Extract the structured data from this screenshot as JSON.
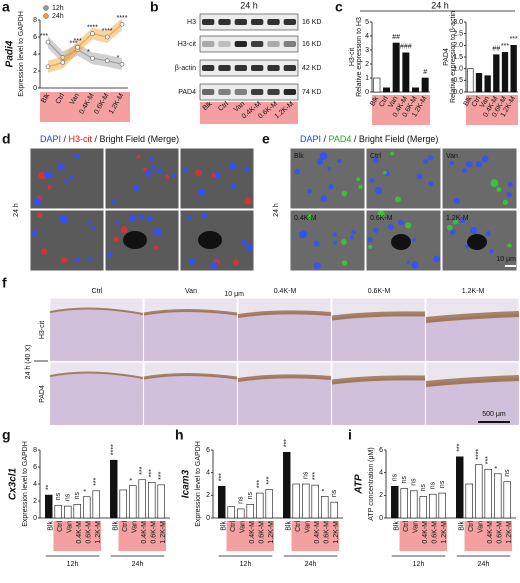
{
  "panels": {
    "letters": [
      "a",
      "b",
      "c",
      "d",
      "e",
      "f",
      "g",
      "h",
      "i"
    ],
    "a": {
      "type": "line",
      "gene": "Padi4",
      "ylabel": "Expression level to GAPDH",
      "categories": [
        "Blk",
        "Ctrl",
        "Van",
        "0.4K-M",
        "0.6K-M",
        "1.2K-M"
      ],
      "ylim": [
        0,
        8
      ],
      "yticks": [
        0,
        2,
        4,
        6,
        8
      ],
      "series": [
        {
          "name": "12h",
          "color": "#9a9a9a",
          "values": [
            5.4,
            3.6,
            4.5,
            3.5,
            3.2,
            2.8
          ],
          "sig": [
            "***",
            null,
            "***",
            "*",
            null,
            "*"
          ]
        },
        {
          "name": "24h",
          "color": "#f0a030",
          "values": [
            2.5,
            3.0,
            4.8,
            6.4,
            6.0,
            7.5
          ],
          "sig": [
            null,
            null,
            "***",
            "****",
            "****",
            "****"
          ]
        }
      ]
    },
    "b": {
      "title": "24 h",
      "bands": [
        {
          "name": "H3",
          "size": "16 KD"
        },
        {
          "name": "H3-cit",
          "size": "16 KD"
        },
        {
          "name": "β-actin",
          "size": "42 KD"
        },
        {
          "name": "PAD4",
          "size": "74 KD"
        }
      ],
      "lanes": [
        "Blk",
        "Ctrl",
        "Van",
        "0.4K-M",
        "0.6K-M",
        "1.2K-M"
      ]
    },
    "c": {
      "title": "24 h",
      "charts": [
        {
          "top": "H3-cit",
          "ylabel": "Relative expression to H3",
          "ylim": [
            0,
            5
          ],
          "yticks": [
            0,
            1,
            2,
            3,
            4,
            5
          ],
          "categories": [
            "Blk",
            "Ctrl",
            "Van",
            "0.4K-M",
            "0.6K-M",
            "1.2K-M"
          ],
          "values": [
            1.0,
            0.3,
            3.5,
            2.8,
            0.3,
            1.0
          ],
          "sig": [
            null,
            null,
            "##",
            "###",
            null,
            "#"
          ]
        },
        {
          "top": "PAD4",
          "ylabel": "Relative expression to β-actin",
          "ylim": [
            0,
            3
          ],
          "yticks": [
            {
              "value": 0,
              "label": "0.0"
            },
            0.5,
            {
              "value": 1,
              "label": "1.0"
            },
            1.5,
            {
              "value": 2,
              "label": "2.0"
            },
            2.5,
            {
              "value": 3,
              "label": "3.0"
            }
          ],
          "categories": [
            "Blk",
            "Ctrl",
            "Van",
            "0.4K-M",
            "0.6K-M",
            "1.2K-M"
          ],
          "values": [
            1.0,
            0.8,
            0.7,
            1.6,
            1.7,
            2.0
          ],
          "sig": [
            null,
            null,
            null,
            "##",
            "***",
            "***"
          ]
        }
      ]
    },
    "d": {
      "title_parts": [
        "DAPI",
        " / ",
        "H3-cit",
        " / Bright Field (Merge)"
      ],
      "row_label": "24 h",
      "scale": "10 μm"
    },
    "e": {
      "title_parts": [
        "DAPI",
        " / ",
        "PAD4",
        " / Bright Field (Merge)"
      ],
      "row_label": "24 h",
      "scale": "10 μm",
      "labels": [
        "Blk",
        "Ctrl",
        "Van",
        "0.4K-M",
        "0.6K-M",
        "1.2K-M"
      ]
    },
    "f": {
      "columns": [
        "Ctrl",
        "Van",
        "0.4K-M",
        "0.6K-M",
        "1.2K-M"
      ],
      "rows": [
        "H3-cit",
        "PAD4"
      ],
      "row_label": "24 h (40 X)",
      "scale": "500 μm"
    },
    "bars": [
      {
        "gene": "Cx3cl1",
        "ylabel": "Expression level to GAPDH",
        "ylim": [
          0,
          8
        ],
        "yticks": [
          0,
          2,
          4,
          6,
          8
        ],
        "categories": [
          "Blk",
          "Ctrl",
          "Van",
          "0.4K-M",
          "0.6K-M",
          "1.2K-M"
        ],
        "groups": [
          {
            "name": "12h",
            "values": [
              2.7,
              1.5,
              1.4,
              1.6,
              2.5,
              3.2
            ],
            "sig": [
              "**",
              "ns",
              "ns",
              "ns",
              "*",
              "***"
            ]
          },
          {
            "name": "24h",
            "values": [
              6.8,
              3.3,
              3.8,
              4.5,
              4.2,
              3.9
            ],
            "sig": [
              "****",
              null,
              "*",
              "***",
              "***",
              "***"
            ]
          }
        ]
      },
      {
        "gene": "Icam3",
        "ylabel": "Expression level to GAPDH",
        "ylim": [
          0,
          6
        ],
        "yticks": [
          0,
          2,
          4,
          6
        ],
        "categories": [
          "Blk",
          "Ctrl",
          "Van",
          "0.4K-M",
          "0.6K-M",
          "1.2K-M"
        ],
        "groups": [
          {
            "name": "12h",
            "values": [
              2.8,
              1.0,
              0.8,
              1.2,
              2.2,
              2.5
            ],
            "sig": [
              "***",
              null,
              "ns",
              "ns",
              "***",
              "***"
            ]
          },
          {
            "name": "24h",
            "values": [
              5.8,
              3.0,
              3.0,
              2.9,
              1.9,
              1.4
            ],
            "sig": [
              "***",
              null,
              "ns",
              "***",
              "*",
              "ns"
            ]
          }
        ]
      },
      {
        "gene": "ATP",
        "ylabel": "ATP concentration (μM)",
        "ylim": [
          0,
          6
        ],
        "yticks": [
          0,
          2,
          4,
          6
        ],
        "categories": [
          "Blk",
          "Ctrl",
          "Van",
          "0.4K-M",
          "0.6K-M",
          "1.2K-M"
        ],
        "groups": [
          {
            "name": "12h",
            "values": [
              2.8,
              2.6,
              2.4,
              1.9,
              2.1,
              2.2
            ],
            "sig": [
              "ns",
              "ns",
              "ns",
              "ns",
              "ns",
              "ns"
            ]
          },
          {
            "name": "24h",
            "values": [
              5.4,
              3.0,
              4.7,
              4.3,
              3.9,
              3.2
            ],
            "sig": [
              "***",
              null,
              "****",
              "***",
              "*",
              "ns"
            ]
          }
        ]
      }
    ]
  }
}
